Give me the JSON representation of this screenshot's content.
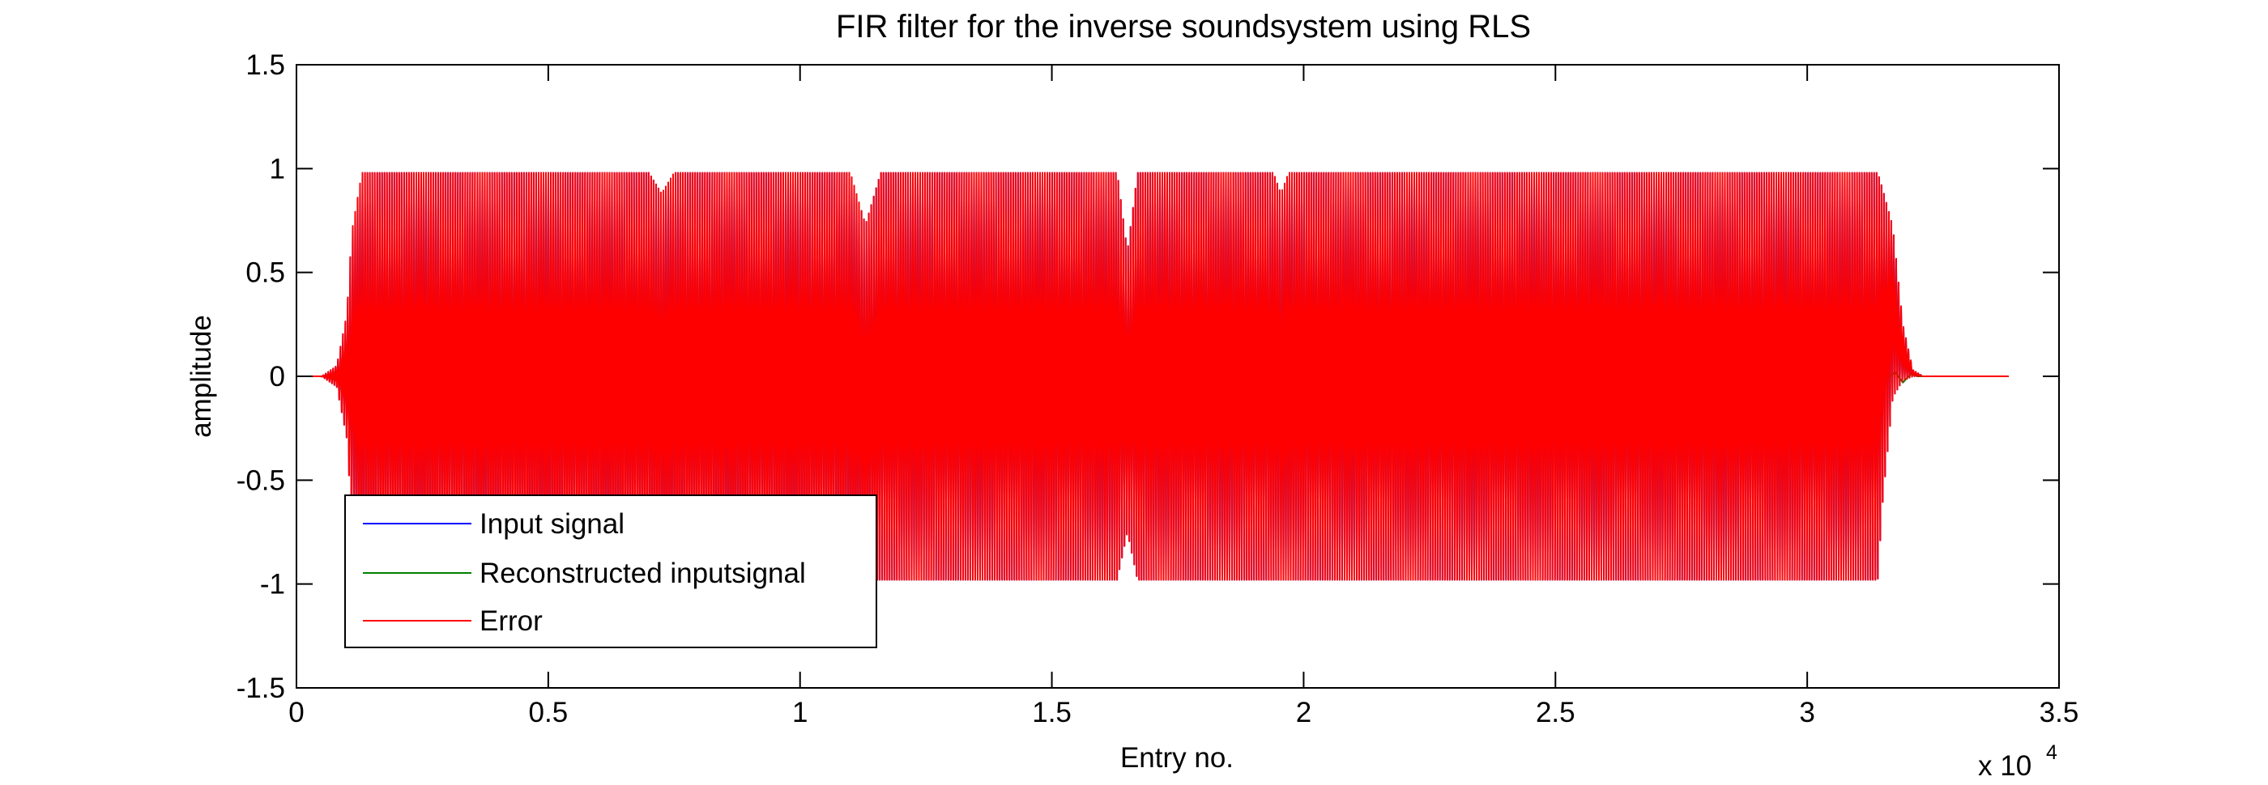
{
  "chart_data": {
    "type": "line",
    "title": "FIR filter for the inverse soundsystem using RLS",
    "xlabel": "Entry no.",
    "ylabel": "amplitude",
    "x_exponent_prefix": "x 10",
    "x_exponent_power": "4",
    "xlim": [
      0,
      35000
    ],
    "ylim": [
      -1.5,
      1.5
    ],
    "x_ticks": [
      0,
      5000,
      10000,
      15000,
      20000,
      25000,
      30000,
      35000
    ],
    "x_tick_labels": [
      "0",
      "0.5",
      "1",
      "1.5",
      "2",
      "2.5",
      "3",
      "3.5"
    ],
    "y_ticks": [
      1.5,
      1,
      0.5,
      0,
      -0.5,
      -1,
      -1.5
    ],
    "y_tick_labels": [
      "1.5",
      "1",
      "0.5",
      "0",
      "-0.5",
      "-1",
      "-1.5"
    ],
    "grid": false,
    "legend_position": "bottom-left",
    "series": [
      {
        "name": "Input signal",
        "color": "#0000ff",
        "style": "dense-oscillation",
        "envelope": {
          "x": [
            0,
            500,
            800,
            1000,
            1100,
            1300,
            2000,
            7000,
            7250,
            7500,
            11000,
            11300,
            11600,
            16300,
            16500,
            16700,
            19400,
            19550,
            19700,
            30200,
            30500,
            31000,
            31400,
            31500,
            31700,
            31900,
            32100,
            32300,
            34000
          ],
          "upper": [
            0,
            0,
            0.05,
            0.3,
            0.7,
            0.98,
            0.98,
            0.98,
            0.88,
            0.98,
            0.98,
            0.73,
            0.98,
            0.98,
            0.6,
            0.98,
            0.98,
            0.88,
            0.98,
            0.98,
            0.98,
            0.98,
            0.98,
            0.9,
            0.72,
            0.25,
            0.03,
            0,
            0
          ],
          "lower": [
            0,
            0,
            -0.05,
            -0.3,
            -0.7,
            -0.98,
            -0.98,
            -0.98,
            -0.98,
            -0.98,
            -0.98,
            -0.98,
            -0.98,
            -0.98,
            -0.75,
            -0.98,
            -0.98,
            -0.98,
            -0.98,
            -0.98,
            -0.98,
            -0.98,
            -0.98,
            -0.6,
            -0.1,
            -0.02,
            0,
            0,
            0
          ]
        }
      },
      {
        "name": "Reconstructed inputsignal",
        "color": "#008000",
        "style": "line",
        "x": [
          0,
          31200,
          31400,
          31600,
          31750,
          31900,
          32050,
          32200,
          34000
        ],
        "y": [
          0,
          0,
          0.01,
          -0.01,
          0.02,
          -0.03,
          0.01,
          0,
          0
        ]
      },
      {
        "name": "Error",
        "color": "#ff0000",
        "style": "dense-oscillation",
        "envelope": {
          "x": [
            0,
            500,
            800,
            1000,
            1100,
            1300,
            2000,
            7000,
            7250,
            7500,
            11000,
            11300,
            11600,
            16300,
            16500,
            16700,
            19400,
            19550,
            19700,
            30200,
            30500,
            31000,
            31400,
            31500,
            31700,
            31900,
            32100,
            32300,
            34000
          ],
          "upper": [
            0,
            0,
            0.05,
            0.3,
            0.7,
            0.98,
            0.98,
            0.98,
            0.88,
            0.98,
            0.98,
            0.73,
            0.98,
            0.98,
            0.6,
            0.98,
            0.98,
            0.88,
            0.98,
            0.98,
            0.98,
            0.98,
            0.98,
            0.9,
            0.72,
            0.25,
            0.03,
            0,
            0
          ],
          "lower": [
            0,
            0,
            -0.05,
            -0.3,
            -0.7,
            -0.98,
            -0.98,
            -0.98,
            -0.98,
            -0.98,
            -0.98,
            -0.98,
            -0.98,
            -0.98,
            -0.75,
            -0.98,
            -0.98,
            -0.98,
            -0.98,
            -0.98,
            -0.98,
            -0.98,
            -0.98,
            -0.6,
            -0.1,
            -0.02,
            0,
            0,
            0
          ]
        }
      }
    ]
  }
}
